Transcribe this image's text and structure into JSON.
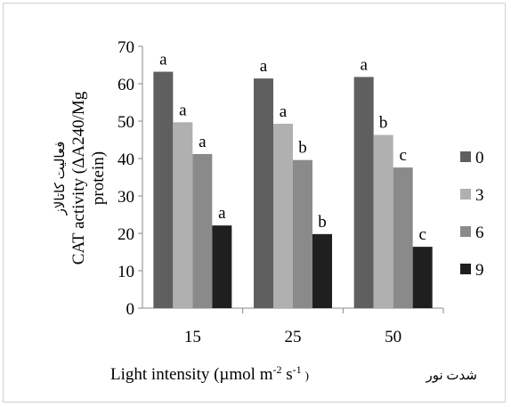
{
  "chart_data": {
    "type": "bar",
    "categories": [
      "15",
      "25",
      "50"
    ],
    "series": [
      {
        "name": "0",
        "color": "#5f5f5f",
        "values": [
          63.2,
          61.4,
          61.8
        ],
        "letters": [
          "a",
          "a",
          "a"
        ]
      },
      {
        "name": "3",
        "color": "#b0b0b0",
        "values": [
          49.7,
          49.3,
          46.3
        ],
        "letters": [
          "a",
          "a",
          "b"
        ]
      },
      {
        "name": "6",
        "color": "#8a8a8a",
        "values": [
          41.2,
          39.6,
          37.6
        ],
        "letters": [
          "a",
          "b",
          "c"
        ]
      },
      {
        "name": "9",
        "color": "#1f1f1f",
        "values": [
          22.1,
          19.8,
          16.4
        ],
        "letters": [
          "a",
          "b",
          "c"
        ]
      }
    ],
    "ylim": [
      0,
      70
    ],
    "yticks": [
      0,
      10,
      20,
      30,
      40,
      50,
      60,
      70
    ],
    "ylabel_persian": "فعالیت کاتالاز",
    "ylabel_line1": "CAT activity (ΔA240/Mg",
    "ylabel_line2": "protein)",
    "xlabel_english": "Light intensity (µmol m",
    "xlabel_sup1": "-2",
    "xlabel_mid": " s",
    "xlabel_sup2": "-1",
    "xlabel_close": ")",
    "xlabel_persian": "شدت نور",
    "legend_position": "right",
    "grid": false
  }
}
